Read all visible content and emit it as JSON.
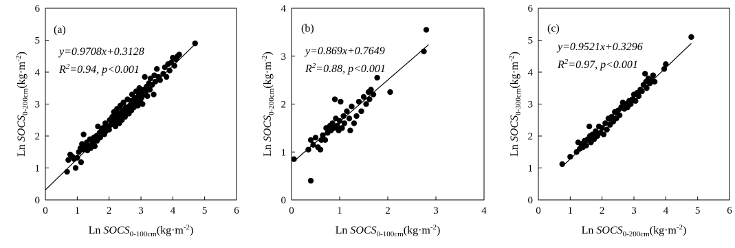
{
  "figure": {
    "panels": [
      {
        "id": "a",
        "label": "(a)",
        "equation": "y=0.9708x+0.3128",
        "r2": "0.94",
        "p": "0.001"
      },
      {
        "id": "b",
        "label": "(b)",
        "equation": "y=0.869x+0.7649",
        "r2": "0.88",
        "p": "0.001"
      },
      {
        "id": "c",
        "label": "(c)",
        "equation": "y=0.9521x+0.3296",
        "r2": "0.97",
        "p": "0.001"
      }
    ]
  },
  "chart_data": [
    {
      "type": "scatter",
      "panel": "(a)",
      "xlabel": "Ln SOCS0-100cm(kg·m-2)",
      "ylabel": "Ln SOCS0-200cm(kg·m-2)",
      "xlim": [
        0,
        6
      ],
      "ylim": [
        0,
        6
      ],
      "xticks": [
        0,
        1,
        2,
        3,
        4,
        5,
        6
      ],
      "yticks": [
        0,
        1,
        2,
        3,
        4,
        5,
        6
      ],
      "fit": {
        "slope": 0.9708,
        "intercept": 0.3128,
        "x_range": [
          0,
          4.7
        ]
      },
      "annotation": [
        "y=0.9708x+0.3128",
        "R2=0.94, p<0.001"
      ],
      "points": [
        [
          0.68,
          0.88
        ],
        [
          0.72,
          1.25
        ],
        [
          0.78,
          1.42
        ],
        [
          0.85,
          1.35
        ],
        [
          0.9,
          1.28
        ],
        [
          0.95,
          1.0
        ],
        [
          1.0,
          1.32
        ],
        [
          1.05,
          1.5
        ],
        [
          1.1,
          1.62
        ],
        [
          1.12,
          1.18
        ],
        [
          1.15,
          1.75
        ],
        [
          1.18,
          1.58
        ],
        [
          1.2,
          2.05
        ],
        [
          1.25,
          1.65
        ],
        [
          1.3,
          1.8
        ],
        [
          1.32,
          1.55
        ],
        [
          1.35,
          1.7
        ],
        [
          1.4,
          1.9
        ],
        [
          1.42,
          1.62
        ],
        [
          1.45,
          1.72
        ],
        [
          1.5,
          1.82
        ],
        [
          1.52,
          1.95
        ],
        [
          1.55,
          1.68
        ],
        [
          1.6,
          2.0
        ],
        [
          1.62,
          1.85
        ],
        [
          1.65,
          2.3
        ],
        [
          1.7,
          2.1
        ],
        [
          1.72,
          1.95
        ],
        [
          1.75,
          2.15
        ],
        [
          1.8,
          2.25
        ],
        [
          1.85,
          2.05
        ],
        [
          1.88,
          2.4
        ],
        [
          1.9,
          2.15
        ],
        [
          1.95,
          2.3
        ],
        [
          2.0,
          2.2
        ],
        [
          2.02,
          2.5
        ],
        [
          2.05,
          2.35
        ],
        [
          2.1,
          2.6
        ],
        [
          2.12,
          2.4
        ],
        [
          2.15,
          2.75
        ],
        [
          2.18,
          2.45
        ],
        [
          2.2,
          2.3
        ],
        [
          2.22,
          2.6
        ],
        [
          2.25,
          2.85
        ],
        [
          2.28,
          2.55
        ],
        [
          2.3,
          2.7
        ],
        [
          2.32,
          2.4
        ],
        [
          2.35,
          2.95
        ],
        [
          2.38,
          2.65
        ],
        [
          2.4,
          2.5
        ],
        [
          2.42,
          2.8
        ],
        [
          2.45,
          3.05
        ],
        [
          2.48,
          2.7
        ],
        [
          2.5,
          2.6
        ],
        [
          2.52,
          2.9
        ],
        [
          2.55,
          2.75
        ],
        [
          2.58,
          3.15
        ],
        [
          2.6,
          2.85
        ],
        [
          2.62,
          2.7
        ],
        [
          2.65,
          2.95
        ],
        [
          2.68,
          3.1
        ],
        [
          2.7,
          2.8
        ],
        [
          2.72,
          3.3
        ],
        [
          2.75,
          3.0
        ],
        [
          2.78,
          2.9
        ],
        [
          2.8,
          3.2
        ],
        [
          2.82,
          3.05
        ],
        [
          2.85,
          3.4
        ],
        [
          2.88,
          3.15
        ],
        [
          2.9,
          2.95
        ],
        [
          2.92,
          3.25
        ],
        [
          2.95,
          3.5
        ],
        [
          2.98,
          3.1
        ],
        [
          3.0,
          3.35
        ],
        [
          3.02,
          3.2
        ],
        [
          3.05,
          3.0
        ],
        [
          3.08,
          3.45
        ],
        [
          3.1,
          3.3
        ],
        [
          3.12,
          3.85
        ],
        [
          3.15,
          3.4
        ],
        [
          3.18,
          3.55
        ],
        [
          3.2,
          3.25
        ],
        [
          3.25,
          3.65
        ],
        [
          3.28,
          3.45
        ],
        [
          3.3,
          3.8
        ],
        [
          3.35,
          3.6
        ],
        [
          3.4,
          3.3
        ],
        [
          3.42,
          3.9
        ],
        [
          3.45,
          3.7
        ],
        [
          3.5,
          4.1
        ],
        [
          3.55,
          3.85
        ],
        [
          3.6,
          3.75
        ],
        [
          3.7,
          3.95
        ],
        [
          3.75,
          4.15
        ],
        [
          3.8,
          3.85
        ],
        [
          3.85,
          4.25
        ],
        [
          3.9,
          4.05
        ],
        [
          3.95,
          4.3
        ],
        [
          4.0,
          4.45
        ],
        [
          4.05,
          4.2
        ],
        [
          4.1,
          4.4
        ],
        [
          4.15,
          4.5
        ],
        [
          4.2,
          4.55
        ],
        [
          4.7,
          4.9
        ]
      ]
    },
    {
      "type": "scatter",
      "panel": "(b)",
      "xlabel": "Ln SOCS0-100cm(kg·m-2)",
      "ylabel": "Ln SOCS0-200cm(kg·m-2)",
      "xlim": [
        0,
        4
      ],
      "ylim": [
        0,
        4
      ],
      "xticks": [
        0,
        1,
        2,
        3,
        4
      ],
      "yticks": [
        0,
        1,
        2,
        3,
        4
      ],
      "fit": {
        "slope": 0.869,
        "intercept": 0.7649,
        "x_range": [
          0.05,
          2.85
        ]
      },
      "annotation": [
        "y=0.869x+0.7649",
        "R2=0.88, p<0.001"
      ],
      "points": [
        [
          0.05,
          0.85
        ],
        [
          0.4,
          0.4
        ],
        [
          0.35,
          1.05
        ],
        [
          0.4,
          1.25
        ],
        [
          0.45,
          1.15
        ],
        [
          0.5,
          1.3
        ],
        [
          0.55,
          1.1
        ],
        [
          0.6,
          1.05
        ],
        [
          0.62,
          1.25
        ],
        [
          0.65,
          1.35
        ],
        [
          0.7,
          1.25
        ],
        [
          0.72,
          1.5
        ],
        [
          0.75,
          1.4
        ],
        [
          0.8,
          1.55
        ],
        [
          0.82,
          1.45
        ],
        [
          0.85,
          1.6
        ],
        [
          0.88,
          1.5
        ],
        [
          0.9,
          2.1
        ],
        [
          0.92,
          1.7
        ],
        [
          0.95,
          1.55
        ],
        [
          0.98,
          1.45
        ],
        [
          1.0,
          1.65
        ],
        [
          1.02,
          2.05
        ],
        [
          1.05,
          1.5
        ],
        [
          1.08,
          1.75
        ],
        [
          1.1,
          1.6
        ],
        [
          1.15,
          1.85
        ],
        [
          1.2,
          1.7
        ],
        [
          1.22,
          1.45
        ],
        [
          1.25,
          1.95
        ],
        [
          1.3,
          1.6
        ],
        [
          1.35,
          1.75
        ],
        [
          1.4,
          2.05
        ],
        [
          1.45,
          1.85
        ],
        [
          1.5,
          2.15
        ],
        [
          1.55,
          2.0
        ],
        [
          1.6,
          2.25
        ],
        [
          1.62,
          2.1
        ],
        [
          1.65,
          2.3
        ],
        [
          1.7,
          2.2
        ],
        [
          1.78,
          2.55
        ],
        [
          2.05,
          2.25
        ],
        [
          2.75,
          3.1
        ],
        [
          2.8,
          3.55
        ]
      ]
    },
    {
      "type": "scatter",
      "panel": "(c)",
      "xlabel": "Ln SOCS0-200cm(kg·m-2)",
      "ylabel": "Ln SOCS0-300cm(kg·m-2)",
      "xlim": [
        0,
        6
      ],
      "ylim": [
        0,
        6
      ],
      "xticks": [
        0,
        1,
        2,
        3,
        4,
        5,
        6
      ],
      "yticks": [
        0,
        1,
        2,
        3,
        4,
        5,
        6
      ],
      "fit": {
        "slope": 0.9521,
        "intercept": 0.3296,
        "x_range": [
          0.75,
          4.8
        ]
      },
      "annotation": [
        "y=0.9521x+0.3296",
        "R2=0.97, p<0.001"
      ],
      "points": [
        [
          0.75,
          1.12
        ],
        [
          1.0,
          1.35
        ],
        [
          1.2,
          1.5
        ],
        [
          1.25,
          1.8
        ],
        [
          1.3,
          1.6
        ],
        [
          1.35,
          1.75
        ],
        [
          1.4,
          1.65
        ],
        [
          1.45,
          1.85
        ],
        [
          1.5,
          1.7
        ],
        [
          1.55,
          1.9
        ],
        [
          1.6,
          2.3
        ],
        [
          1.62,
          2.0
        ],
        [
          1.65,
          1.8
        ],
        [
          1.7,
          2.05
        ],
        [
          1.75,
          1.9
        ],
        [
          1.8,
          2.15
        ],
        [
          1.85,
          2.0
        ],
        [
          1.9,
          2.3
        ],
        [
          1.95,
          2.1
        ],
        [
          2.0,
          2.25
        ],
        [
          2.05,
          2.05
        ],
        [
          2.1,
          2.4
        ],
        [
          2.15,
          2.2
        ],
        [
          2.2,
          2.55
        ],
        [
          2.25,
          2.35
        ],
        [
          2.3,
          2.6
        ],
        [
          2.35,
          2.45
        ],
        [
          2.4,
          2.75
        ],
        [
          2.45,
          2.55
        ],
        [
          2.5,
          2.8
        ],
        [
          2.55,
          2.65
        ],
        [
          2.6,
          2.9
        ],
        [
          2.65,
          3.05
        ],
        [
          2.7,
          2.85
        ],
        [
          2.75,
          3.0
        ],
        [
          2.8,
          2.9
        ],
        [
          2.85,
          3.1
        ],
        [
          2.9,
          3.0
        ],
        [
          2.95,
          3.15
        ],
        [
          3.0,
          3.3
        ],
        [
          3.05,
          3.1
        ],
        [
          3.1,
          3.35
        ],
        [
          3.15,
          3.25
        ],
        [
          3.2,
          3.45
        ],
        [
          3.25,
          3.4
        ],
        [
          3.3,
          3.6
        ],
        [
          3.35,
          3.95
        ],
        [
          3.38,
          3.7
        ],
        [
          3.4,
          3.5
        ],
        [
          3.45,
          3.8
        ],
        [
          3.5,
          3.65
        ],
        [
          3.55,
          3.75
        ],
        [
          3.6,
          3.9
        ],
        [
          3.65,
          3.7
        ],
        [
          3.95,
          4.1
        ],
        [
          4.0,
          4.25
        ],
        [
          4.8,
          5.1
        ]
      ]
    }
  ]
}
